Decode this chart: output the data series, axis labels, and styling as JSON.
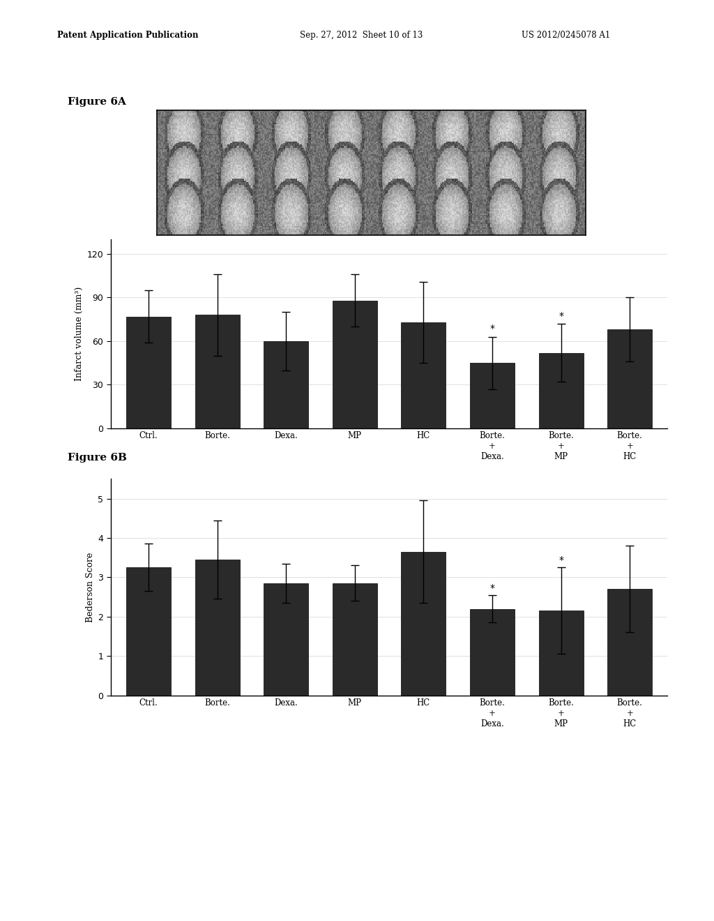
{
  "fig6a": {
    "categories": [
      "Ctrl.",
      "Borte.",
      "Dexa.",
      "MP",
      "HC",
      "Borte.\n+\nDexa.",
      "Borte.\n+\nMP",
      "Borte.\n+\nHC"
    ],
    "values": [
      77,
      78,
      60,
      88,
      73,
      45,
      52,
      68
    ],
    "errors": [
      18,
      28,
      20,
      18,
      28,
      18,
      20,
      22
    ],
    "ylabel": "Infarct volume (mm³)",
    "ylim": [
      0,
      130
    ],
    "yticks": [
      0,
      30,
      60,
      90,
      120
    ],
    "star_indices": [
      5,
      6
    ],
    "bar_color": "#2a2a2a"
  },
  "fig6b": {
    "categories": [
      "Ctrl.",
      "Borte.",
      "Dexa.",
      "MP",
      "HC",
      "Borte.\n+\nDexa.",
      "Borte.\n+\nMP",
      "Borte.\n+\nHC"
    ],
    "values": [
      3.25,
      3.45,
      2.85,
      2.85,
      3.65,
      2.2,
      2.15,
      2.7
    ],
    "errors": [
      0.6,
      1.0,
      0.5,
      0.45,
      1.3,
      0.35,
      1.1,
      1.1
    ],
    "ylabel": "Bederson Score",
    "ylim": [
      0,
      5.5
    ],
    "yticks": [
      0,
      1,
      2,
      3,
      4,
      5
    ],
    "star_indices": [
      5,
      6
    ],
    "bar_color": "#2a2a2a"
  },
  "figure_label_6a": "Figure 6A",
  "figure_label_6b": "Figure 6B",
  "background_color": "#ffffff",
  "header_left": "Patent Application Publication",
  "header_mid": "Sep. 27, 2012  Sheet 10 of 13",
  "header_right": "US 2012/0245078 A1"
}
